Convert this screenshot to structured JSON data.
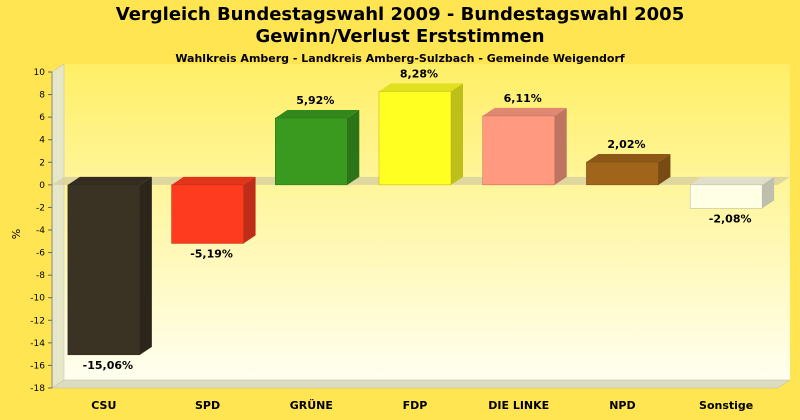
{
  "chart_data": {
    "type": "bar",
    "title": "Vergleich Bundestagswahl 2009 - Bundestagswahl 2005",
    "title2": "Gewinn/Verlust Erststimmen",
    "subtitle": "Wahlkreis Amberg - Landkreis Amberg-Sulzbach - Gemeinde Weigendorf",
    "ylabel": "%",
    "ylim": [
      -18,
      10
    ],
    "yticks": [
      "10",
      "8",
      "6",
      "4",
      "2",
      "0",
      "-2",
      "-4",
      "-6",
      "-8",
      "-10",
      "-12",
      "-14",
      "-16",
      "-18"
    ],
    "grid": false,
    "categories": [
      "CSU",
      "SPD",
      "GRÜNE",
      "FDP",
      "DIE LINKE",
      "NPD",
      "Sonstige"
    ],
    "values": [
      -15.06,
      -5.19,
      5.92,
      8.28,
      6.11,
      2.02,
      -2.08
    ],
    "labels": [
      "-15,06%",
      "-5,19%",
      "5,92%",
      "8,28%",
      "6,11%",
      "2,02%",
      "-2,08%"
    ],
    "colors": [
      "#3A3223",
      "#FF3B1F",
      "#3A9A20",
      "#FFFF22",
      "#FF9A80",
      "#A0641A",
      "#FFFFE6"
    ]
  }
}
